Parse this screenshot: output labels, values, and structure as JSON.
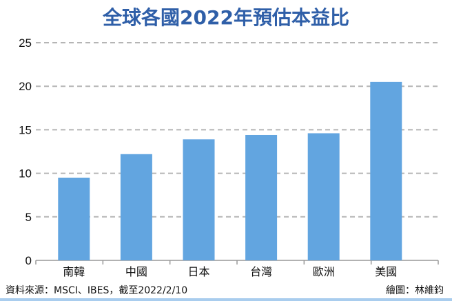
{
  "chart_data": {
    "type": "bar",
    "title": "全球各國2022年預估本益比",
    "categories": [
      "南韓",
      "中國",
      "日本",
      "台灣",
      "歐洲",
      "美國"
    ],
    "values": [
      9.5,
      12.2,
      13.9,
      14.4,
      14.6,
      20.5
    ],
    "xlabel": "",
    "ylabel": "",
    "ylim": [
      0,
      25
    ],
    "yticks": [
      0,
      5,
      10,
      15,
      20,
      25
    ],
    "grid": true,
    "grid_style": "dashed",
    "bar_color": "#62a5e0",
    "title_color": "#2f5fa8"
  },
  "footer": {
    "source": "資料來源：MSCI、IBES，截至2022/2/10",
    "credit": "繪圖：林維鈞"
  }
}
